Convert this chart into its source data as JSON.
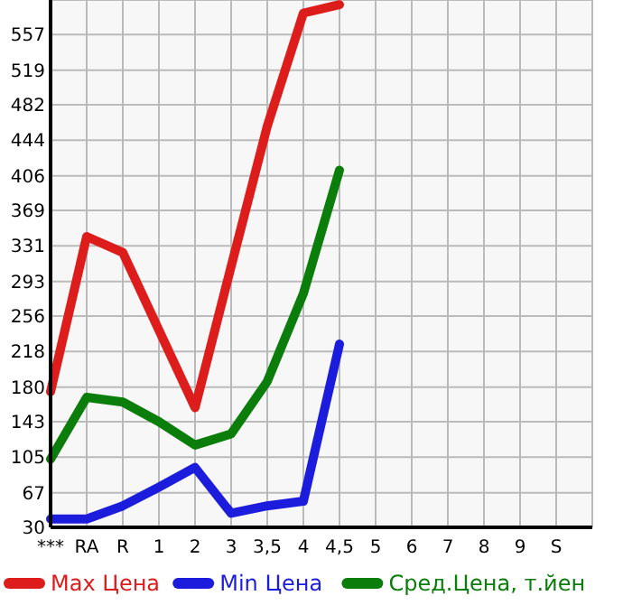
{
  "chart_data": {
    "type": "line",
    "categories": [
      "***",
      "RA",
      "R",
      "1",
      "2",
      "3",
      "3,5",
      "4",
      "4,5",
      "5",
      "6",
      "7",
      "8",
      "9",
      "S"
    ],
    "series": [
      {
        "name": "Max Цена",
        "color": "#dd1c1c",
        "values": [
          175,
          341,
          324,
          241,
          158,
          309,
          459,
          580,
          589,
          null,
          null,
          null,
          null,
          null,
          null
        ]
      },
      {
        "name": "Min Цена",
        "color": "#1c1cdd",
        "values": [
          39,
          39,
          53,
          73,
          94,
          45,
          53,
          58,
          226,
          null,
          null,
          null,
          null,
          null,
          null
        ]
      },
      {
        "name": "Сред.Цена, т.йен",
        "color": "#0a7d0a",
        "values": [
          103,
          169,
          164,
          143,
          118,
          130,
          186,
          280,
          412,
          null,
          null,
          null,
          null,
          null,
          null
        ]
      }
    ],
    "ylim": [
      30,
      594
    ],
    "yticks": [
      30,
      67,
      105,
      143,
      180,
      218,
      256,
      293,
      331,
      369,
      406,
      444,
      482,
      519,
      557
    ],
    "grid": true,
    "legend": "bottom",
    "marker": "none",
    "line_style": "solid"
  }
}
